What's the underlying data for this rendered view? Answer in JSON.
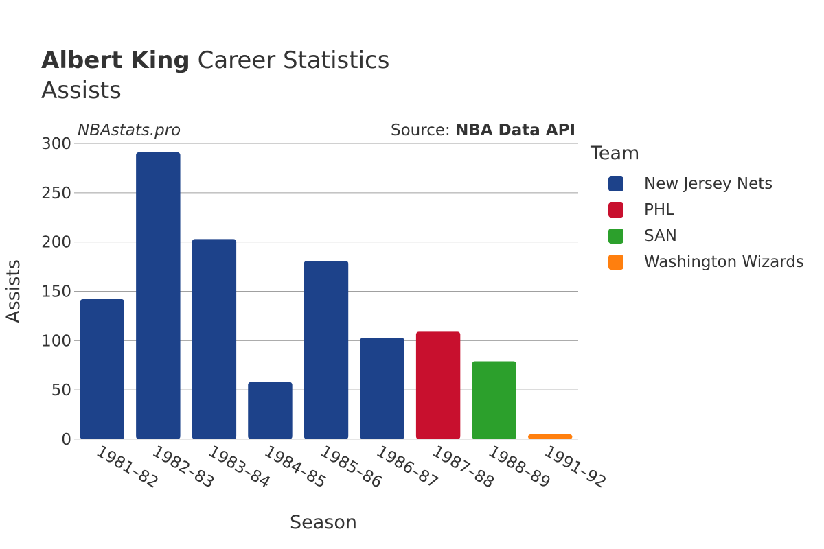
{
  "header": {
    "player_name": "Albert King",
    "title_rest": " Career Statistics",
    "subtitle": "Assists",
    "watermark": "NBAstats.pro",
    "source_prefix": "Source: ",
    "source_name": "NBA Data API"
  },
  "legend": {
    "title": "Team",
    "items": [
      {
        "name": "New Jersey Nets",
        "color": "#1d428a"
      },
      {
        "name": "PHL",
        "color": "#c8102e"
      },
      {
        "name": "SAN",
        "color": "#2ca02c"
      },
      {
        "name": "Washington Wizards",
        "color": "#ff7f0e"
      }
    ]
  },
  "chart_data": {
    "type": "bar",
    "title": "Albert King Career Statistics",
    "subtitle": "Assists",
    "xlabel": "Season",
    "ylabel": "Assists",
    "ylim": [
      0,
      300
    ],
    "yticks": [
      0,
      50,
      100,
      150,
      200,
      250,
      300
    ],
    "grid": true,
    "legend_position": "right",
    "categories": [
      "1981–82",
      "1982–83",
      "1983–84",
      "1984–85",
      "1985–86",
      "1986–87",
      "1987–88",
      "1988–89",
      "1991–92"
    ],
    "values": [
      142,
      291,
      203,
      58,
      181,
      103,
      109,
      79,
      5
    ],
    "teams": [
      "New Jersey Nets",
      "New Jersey Nets",
      "New Jersey Nets",
      "New Jersey Nets",
      "New Jersey Nets",
      "New Jersey Nets",
      "PHL",
      "SAN",
      "Washington Wizards"
    ]
  }
}
